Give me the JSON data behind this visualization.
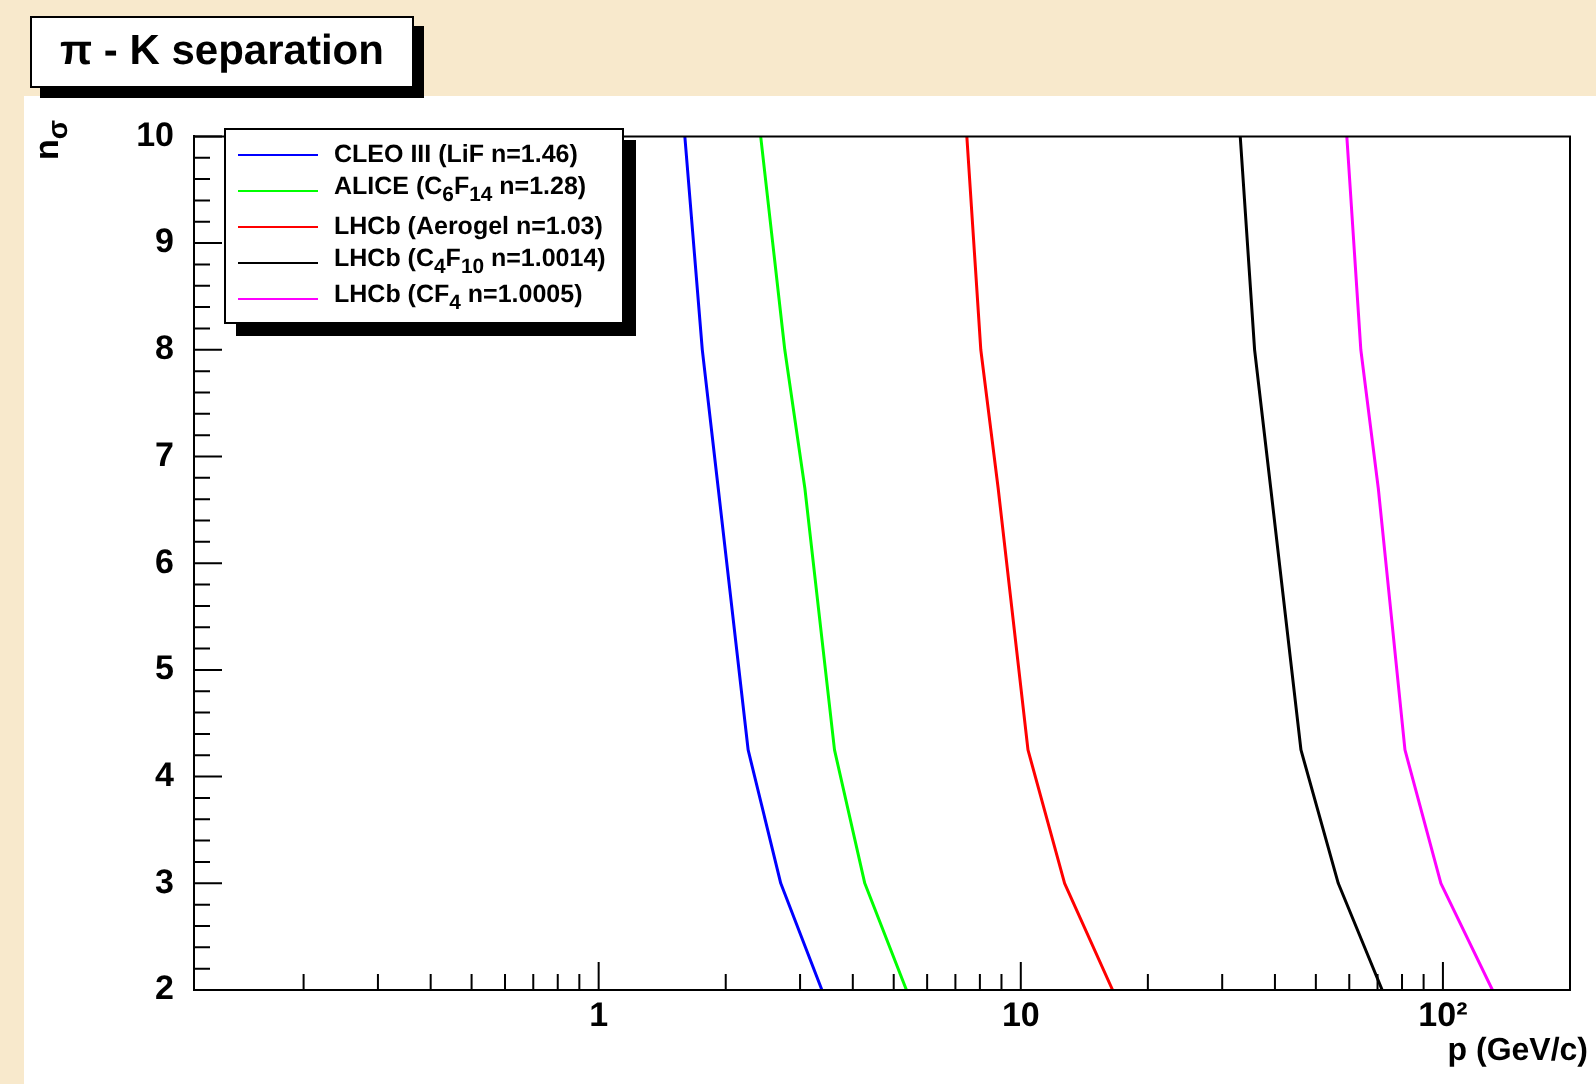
{
  "chart_data": {
    "type": "line",
    "title": "π - K separation",
    "xlabel": "p (GeV/c)",
    "ylabel": "n$_{σ}$",
    "log": "x",
    "xlim": [
      0.11,
      200
    ],
    "ylim": [
      2,
      10
    ],
    "xticks": [
      {
        "value": 0.2,
        "label": null
      },
      {
        "value": 0.3,
        "label": null
      },
      {
        "value": 0.4,
        "label": null
      },
      {
        "value": 0.5,
        "label": null
      },
      {
        "value": 0.6,
        "label": null
      },
      {
        "value": 0.7,
        "label": null
      },
      {
        "value": 0.8,
        "label": null
      },
      {
        "value": 0.9,
        "label": null
      },
      1,
      {
        "value": 2,
        "label": null
      },
      {
        "value": 3,
        "label": null
      },
      {
        "value": 4,
        "label": null
      },
      {
        "value": 5,
        "label": null
      },
      {
        "value": 6,
        "label": null
      },
      {
        "value": 7,
        "label": null
      },
      {
        "value": 8,
        "label": null
      },
      {
        "value": 9,
        "label": null
      },
      10,
      {
        "value": 20,
        "label": null
      },
      {
        "value": 30,
        "label": null
      },
      {
        "value": 40,
        "label": null
      },
      {
        "value": 50,
        "label": null
      },
      {
        "value": 60,
        "label": null
      },
      {
        "value": 70,
        "label": null
      },
      {
        "value": 80,
        "label": null
      },
      {
        "value": 90,
        "label": null
      },
      {
        "value": 100,
        "label": "10²"
      },
      {
        "value": 200,
        "label": null
      }
    ],
    "yticks": [
      2,
      {
        "value": 2.2,
        "label": null
      },
      {
        "value": 2.4,
        "label": null
      },
      {
        "value": 2.6,
        "label": null
      },
      {
        "value": 2.8,
        "label": null
      },
      3,
      {
        "value": 3.2,
        "label": null
      },
      {
        "value": 3.4,
        "label": null
      },
      {
        "value": 3.6,
        "label": null
      },
      {
        "value": 3.8,
        "label": null
      },
      4,
      {
        "value": 4.2,
        "label": null
      },
      {
        "value": 4.4,
        "label": null
      },
      {
        "value": 4.6,
        "label": null
      },
      {
        "value": 4.8,
        "label": null
      },
      5,
      {
        "value": 5.2,
        "label": null
      },
      {
        "value": 5.4,
        "label": null
      },
      {
        "value": 5.6,
        "label": null
      },
      {
        "value": 5.8,
        "label": null
      },
      6,
      {
        "value": 6.2,
        "label": null
      },
      {
        "value": 6.4,
        "label": null
      },
      {
        "value": 6.6,
        "label": null
      },
      {
        "value": 6.8,
        "label": null
      },
      7,
      {
        "value": 7.2,
        "label": null
      },
      {
        "value": 7.4,
        "label": null
      },
      {
        "value": 7.6,
        "label": null
      },
      {
        "value": 7.8,
        "label": null
      },
      8,
      {
        "value": 8.2,
        "label": null
      },
      {
        "value": 8.4,
        "label": null
      },
      {
        "value": 8.6,
        "label": null
      },
      {
        "value": 8.8,
        "label": null
      },
      9,
      {
        "value": 9.2,
        "label": null
      },
      {
        "value": 9.4,
        "label": null
      },
      {
        "value": 9.6,
        "label": null
      },
      {
        "value": 9.8,
        "label": null
      },
      10
    ],
    "grid": false,
    "legend": "top left",
    "marker": "none",
    "line_style": "solid",
    "series": [
      {
        "name": "CLEO III (LiF n=1.46)",
        "color": "#0000ff",
        "x": [
          1.6,
          1.76,
          1.92,
          2.26,
          2.7,
          3.38
        ],
        "values": [
          10,
          8,
          6.7,
          4.25,
          3,
          2
        ]
      },
      {
        "name": "ALICE (C$_{6}$F$_{14}$ n=1.28)",
        "color": "#00ff00",
        "x": [
          2.42,
          2.76,
          3.08,
          3.62,
          4.27,
          5.36
        ],
        "values": [
          10,
          8,
          6.7,
          4.25,
          3,
          2
        ]
      },
      {
        "name": "LHCb (Aerogel n=1.03)",
        "color": "#ff0000",
        "x": [
          7.45,
          8.04,
          8.84,
          10.4,
          12.7,
          16.5
        ],
        "values": [
          10,
          8,
          6.7,
          4.25,
          3,
          2
        ]
      },
      {
        "name": "LHCb (C$_{4}$F$_{10}$ n=1.0014)",
        "color": "#000000",
        "x": [
          33.1,
          35.8,
          39.1,
          46.1,
          56.5,
          71.8
        ],
        "values": [
          10,
          8,
          6.7,
          4.25,
          3,
          2
        ]
      },
      {
        "name": "LHCb (CF$_{4}$ n=1.0005)",
        "color": "#ff00ff",
        "x": [
          59.2,
          63.9,
          70.3,
          81.3,
          98.9,
          131
        ],
        "values": [
          10,
          8,
          6.7,
          4.25,
          3,
          2
        ]
      }
    ]
  }
}
